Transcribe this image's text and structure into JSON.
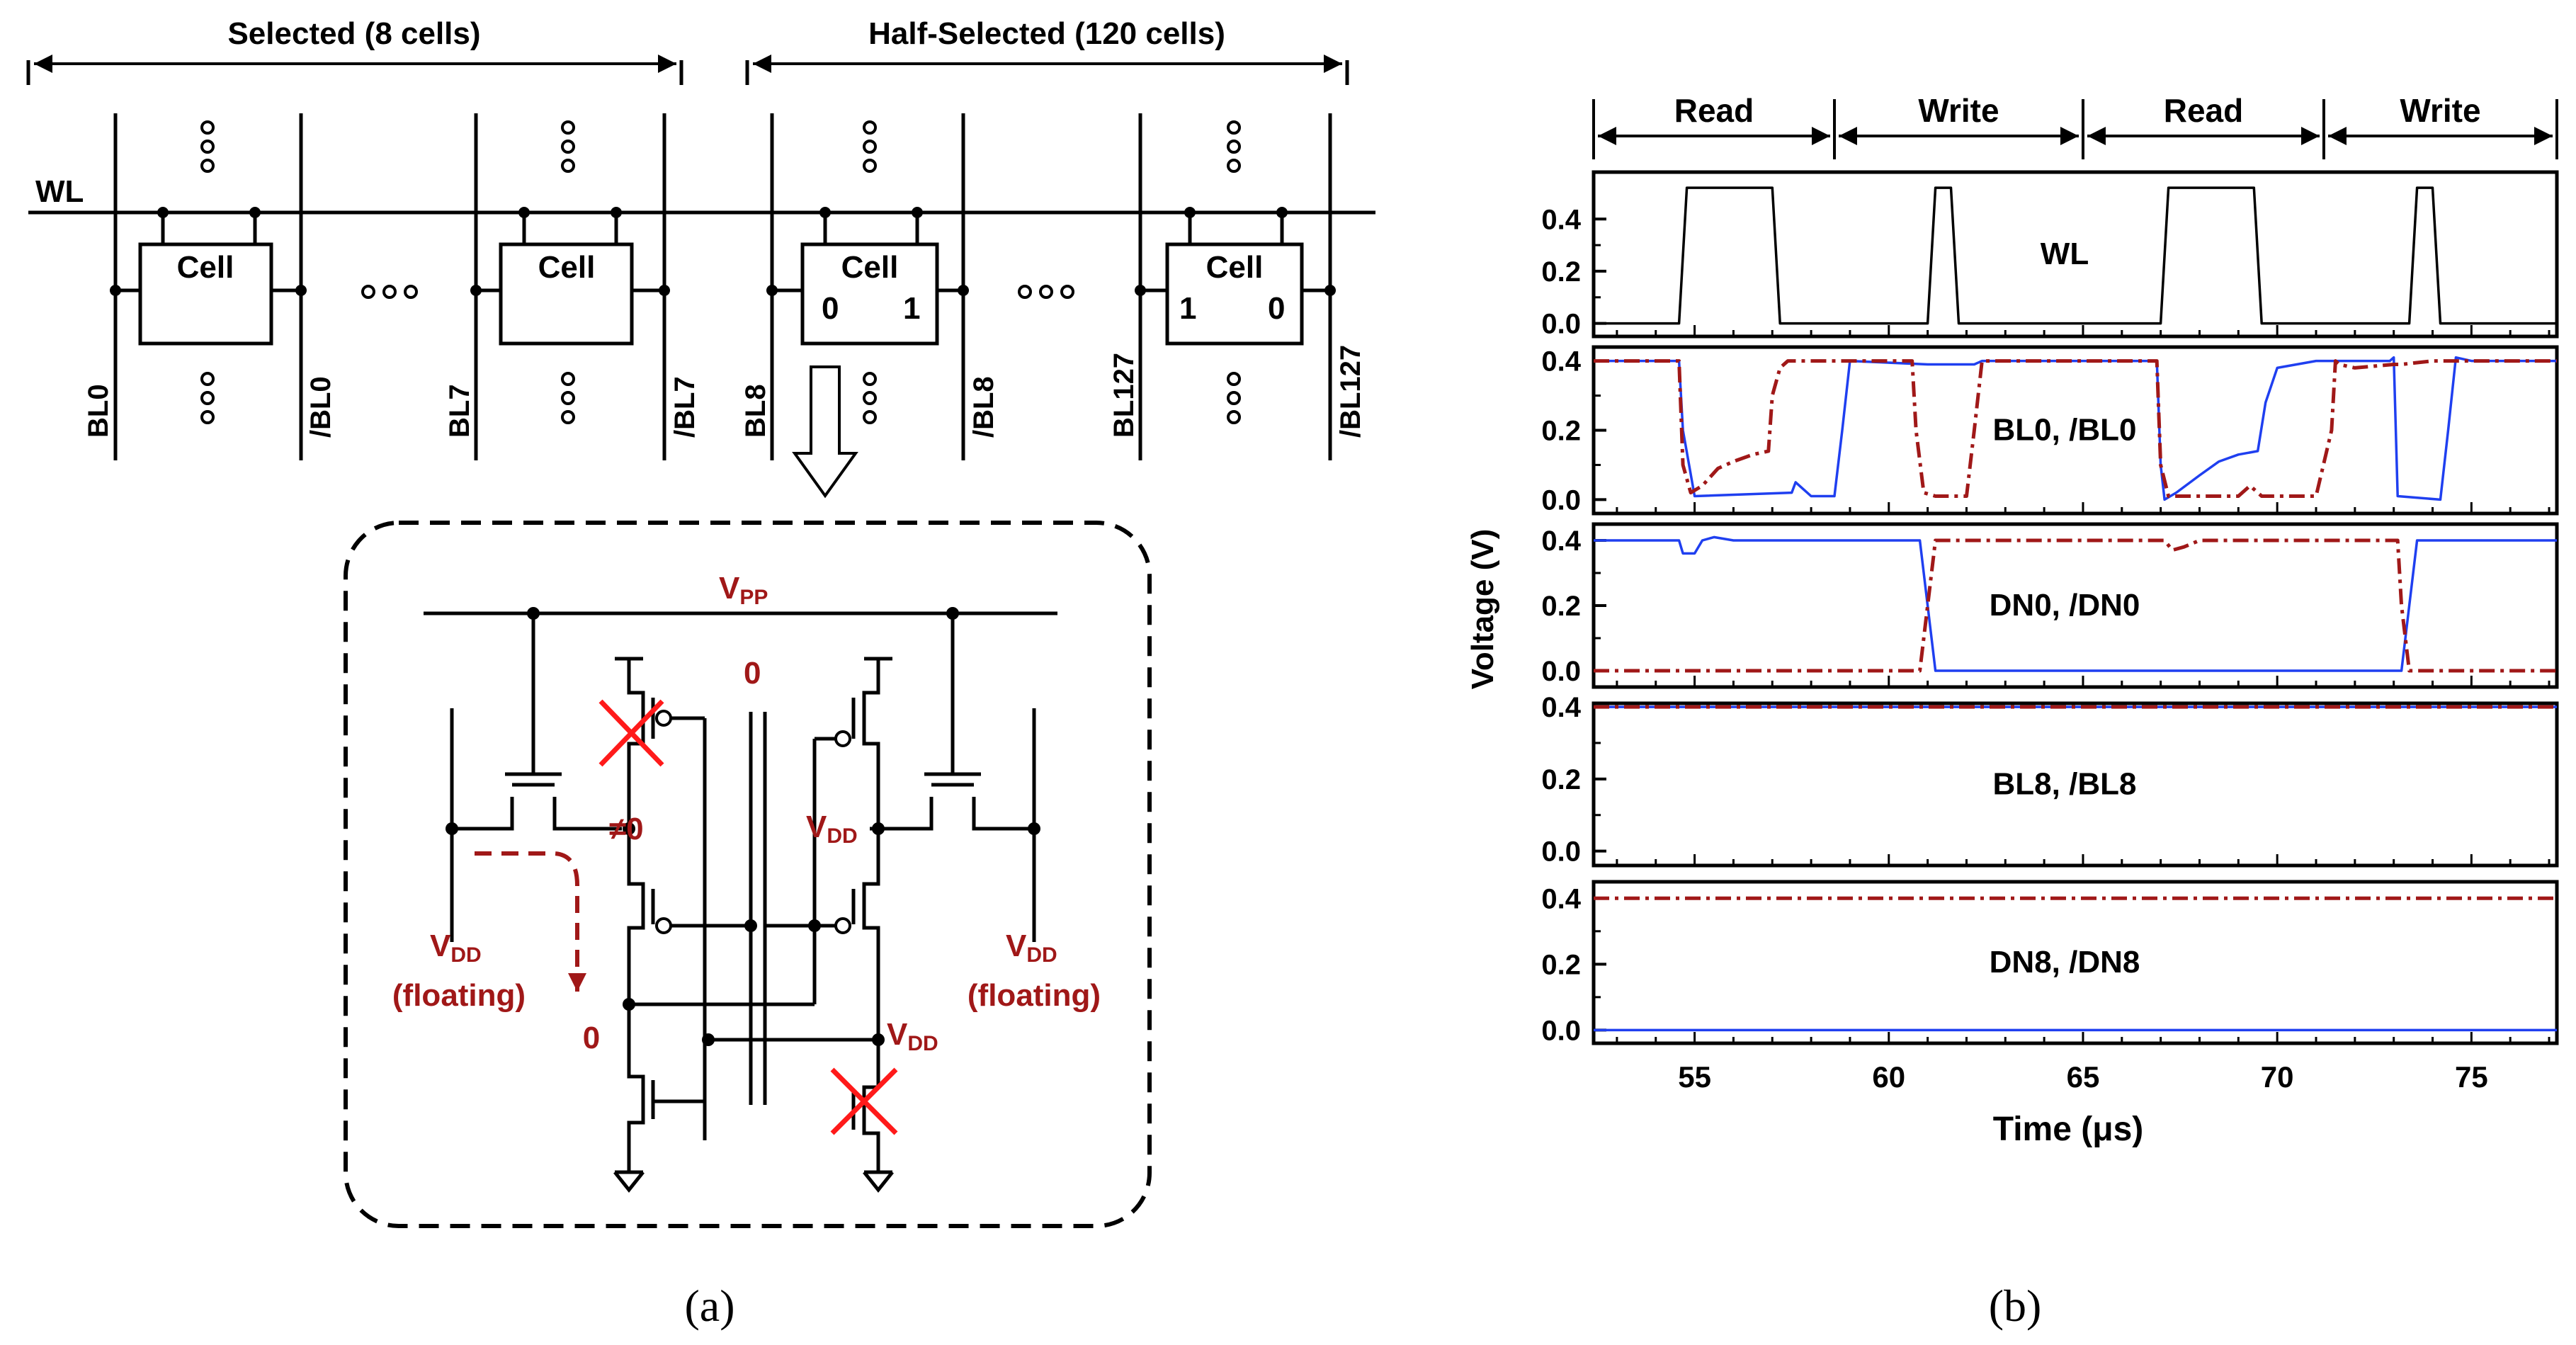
{
  "panel_a": {
    "caption": "(a)",
    "selected_label": "Selected (8 cells)",
    "half_selected_label": "Half-Selected (120 cells)",
    "wl_label": "WL",
    "cell_label": "Cell",
    "bitlines": [
      "BL0",
      "/BL0",
      "BL7",
      "/BL7",
      "BL8",
      "/BL8",
      "BL127",
      "/BL127"
    ],
    "cell3_values": [
      "0",
      "1"
    ],
    "cell4_values": [
      "1",
      "0"
    ],
    "circuit": {
      "vpp_main": "V",
      "vpp_sub": "PP",
      "center_zero": "0",
      "neq_zero": "≠0",
      "vdd_main": "V",
      "vdd_sub": "DD",
      "floating": "(floating)",
      "zero_node": "0"
    }
  },
  "panel_b": {
    "caption": "(b)",
    "phases": [
      "Read",
      "Write",
      "Read",
      "Write"
    ],
    "y_axis_label": "Voltage (V)",
    "x_axis_label": "Time (μs)",
    "colors": {
      "solid": "#1f3ff0",
      "dashdot": "#a01818",
      "wl": "#000000"
    }
  },
  "chart_data": {
    "type": "line",
    "title": "",
    "xlabel": "Time (μs)",
    "ylabel": "Voltage (V)",
    "xlim": [
      52.4,
      77.2
    ],
    "xticks": [
      55,
      60,
      65,
      70,
      75
    ],
    "panels": [
      {
        "label": "WL",
        "ylim": [
          -0.05,
          0.58
        ],
        "yticks": [
          "0.0",
          "0.2",
          "0.4"
        ],
        "ytick_values": [
          0,
          0.2,
          0.4
        ],
        "series": [
          {
            "name": "WL",
            "style": "solid-black",
            "x": [
              52.4,
              54.6,
              54.8,
              57.0,
              57.2,
              61.0,
              61.2,
              61.6,
              61.8,
              67.0,
              67.2,
              69.4,
              69.6,
              73.4,
              73.6,
              74.0,
              74.2,
              77.2
            ],
            "y": [
              0,
              0,
              0.52,
              0.52,
              0,
              0,
              0.52,
              0.52,
              0,
              0,
              0.52,
              0.52,
              0,
              0,
              0.52,
              0.52,
              0,
              0
            ]
          }
        ]
      },
      {
        "label": "BL0, /BL0",
        "ylim": [
          -0.04,
          0.44
        ],
        "yticks": [
          "0.0",
          "0.2",
          "0.4"
        ],
        "ytick_values": [
          0,
          0.2,
          0.4
        ],
        "series": [
          {
            "name": "BL0",
            "style": "solid-blue",
            "x": [
              52.4,
              54.5,
              54.6,
              54.7,
              55.0,
              57.5,
              57.6,
              57.8,
              58.0,
              58.6,
              58.8,
              59.0,
              61.0,
              62.2,
              62.4,
              62.6,
              63.0,
              66.9,
              67.0,
              67.1,
              67.4,
              68.0,
              68.5,
              69.0,
              69.5,
              69.7,
              70.0,
              71.0,
              72.9,
              73.0,
              73.1,
              74.2,
              74.4,
              74.6,
              75.0,
              77.2
            ],
            "y": [
              0.4,
              0.4,
              0.4,
              0.2,
              0.01,
              0.02,
              0.05,
              0.03,
              0.01,
              0.01,
              0.2,
              0.4,
              0.39,
              0.39,
              0.4,
              0.4,
              0.4,
              0.4,
              0.1,
              0.0,
              0.02,
              0.07,
              0.11,
              0.13,
              0.14,
              0.28,
              0.38,
              0.4,
              0.4,
              0.41,
              0.01,
              0.0,
              0.2,
              0.41,
              0.4,
              0.4
            ]
          },
          {
            "name": "/BL0",
            "style": "dashdot-red",
            "x": [
              52.4,
              54.5,
              54.6,
              54.7,
              54.9,
              55.2,
              55.6,
              56.0,
              56.5,
              56.9,
              57.0,
              57.2,
              57.4,
              58.0,
              60.6,
              60.7,
              60.9,
              61.2,
              62.0,
              62.2,
              62.4,
              63.0,
              66.9,
              67.0,
              67.2,
              67.5,
              69.0,
              69.3,
              69.6,
              70.0,
              71.0,
              71.4,
              71.5,
              71.6,
              72.0,
              73.0,
              73.2,
              74.0,
              77.2
            ],
            "y": [
              0.4,
              0.4,
              0.4,
              0.1,
              0.02,
              0.04,
              0.09,
              0.11,
              0.13,
              0.14,
              0.3,
              0.38,
              0.4,
              0.4,
              0.4,
              0.2,
              0.02,
              0.01,
              0.01,
              0.2,
              0.4,
              0.4,
              0.4,
              0.1,
              0.01,
              0.01,
              0.01,
              0.04,
              0.01,
              0.01,
              0.01,
              0.2,
              0.4,
              0.39,
              0.38,
              0.39,
              0.39,
              0.4,
              0.4
            ]
          }
        ]
      },
      {
        "label": "DN0, /DN0",
        "ylim": [
          -0.05,
          0.45
        ],
        "yticks": [
          "0.0",
          "0.2",
          "0.4"
        ],
        "ytick_values": [
          0,
          0.2,
          0.4
        ],
        "series": [
          {
            "name": "DN0",
            "style": "solid-blue",
            "x": [
              52.4,
              54.6,
              54.7,
              55.0,
              55.2,
              55.5,
              56.0,
              60.8,
              61.0,
              61.2,
              73.2,
              73.4,
              73.6,
              77.2
            ],
            "y": [
              0.4,
              0.4,
              0.36,
              0.36,
              0.4,
              0.41,
              0.4,
              0.4,
              0.2,
              0.0,
              0.0,
              0.2,
              0.4,
              0.4
            ]
          },
          {
            "name": "/DN0",
            "style": "dashdot-red",
            "x": [
              52.4,
              60.8,
              61.0,
              61.2,
              67.1,
              67.3,
              67.6,
              68.0,
              73.1,
              73.2,
              73.4,
              73.6,
              77.2
            ],
            "y": [
              0.0,
              0.0,
              0.2,
              0.4,
              0.4,
              0.37,
              0.38,
              0.4,
              0.4,
              0.2,
              0.0,
              0.0,
              0.0
            ]
          }
        ]
      },
      {
        "label": "BL8, /BL8",
        "ylim": [
          -0.04,
          0.41
        ],
        "yticks": [
          "0.0",
          "0.2",
          "0.4"
        ],
        "ytick_values": [
          0,
          0.2,
          0.4
        ],
        "series": [
          {
            "name": "BL8",
            "style": "solid-blue",
            "x": [
              52.4,
              77.2
            ],
            "y": [
              0.4,
              0.4
            ]
          },
          {
            "name": "/BL8",
            "style": "dashdot-red",
            "x": [
              52.4,
              77.2
            ],
            "y": [
              0.4,
              0.4
            ]
          }
        ]
      },
      {
        "label": "DN8, /DN8",
        "ylim": [
          -0.04,
          0.45
        ],
        "yticks": [
          "0.0",
          "0.2",
          "0.4"
        ],
        "ytick_values": [
          0,
          0.2,
          0.4
        ],
        "series": [
          {
            "name": "DN8",
            "style": "solid-blue",
            "x": [
              52.4,
              77.2
            ],
            "y": [
              0.0,
              0.0
            ]
          },
          {
            "name": "/DN8",
            "style": "dashdot-red",
            "x": [
              52.4,
              77.2
            ],
            "y": [
              0.4,
              0.4
            ]
          }
        ]
      }
    ]
  }
}
